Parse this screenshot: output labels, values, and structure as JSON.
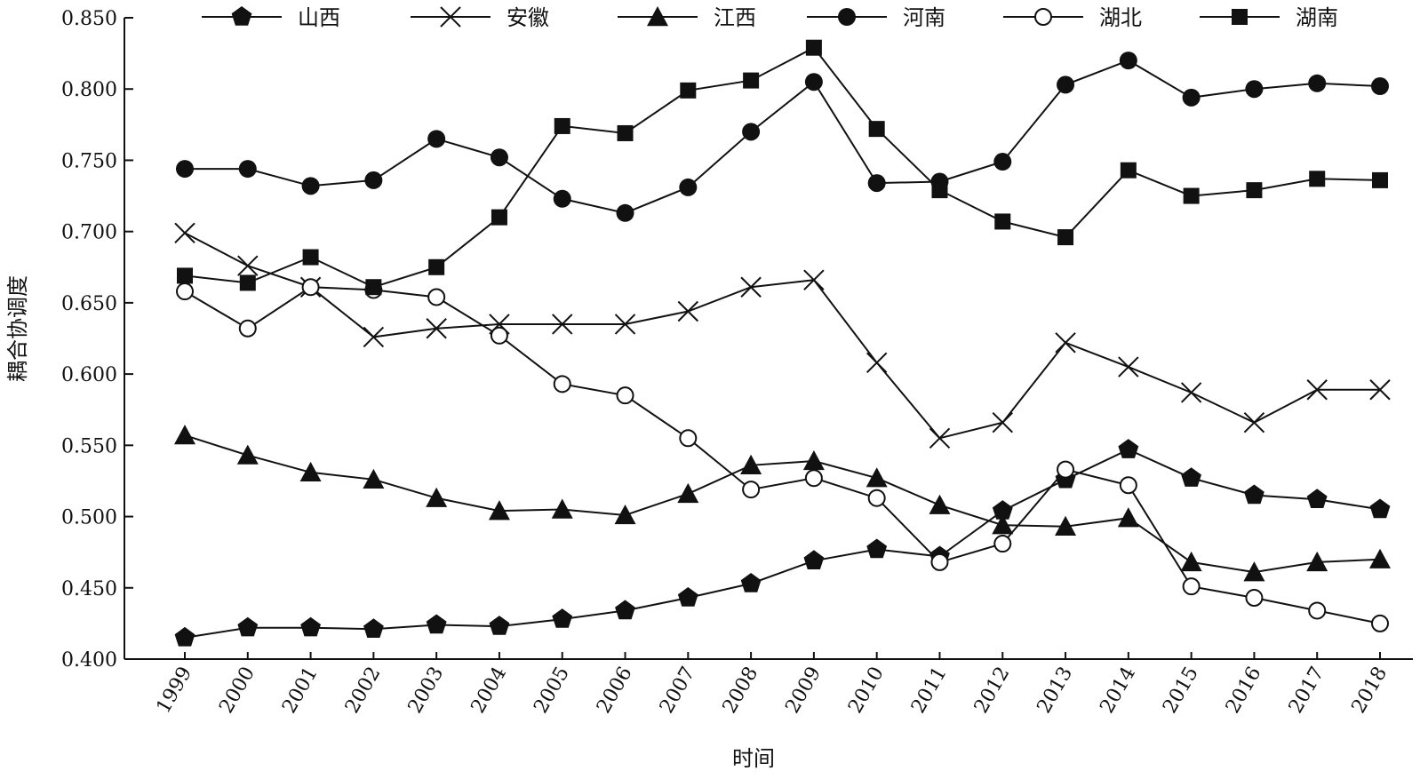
{
  "chart_data": {
    "type": "line",
    "title": "",
    "xlabel": "时间",
    "ylabel": "耦合协调度",
    "ylim": [
      0.4,
      0.85
    ],
    "yticks": [
      "0.400",
      "0.450",
      "0.500",
      "0.550",
      "0.600",
      "0.650",
      "0.700",
      "0.750",
      "0.800",
      "0.850"
    ],
    "categories": [
      "1999",
      "2000",
      "2001",
      "2002",
      "2003",
      "2004",
      "2005",
      "2006",
      "2007",
      "2008",
      "2009",
      "2010",
      "2011",
      "2012",
      "2013",
      "2014",
      "2015",
      "2016",
      "2017",
      "2018"
    ],
    "grid": false,
    "legend_position": "top",
    "series": [
      {
        "name": "山西",
        "marker": "pentagon-filled",
        "values": [
          0.415,
          0.422,
          0.422,
          0.421,
          0.424,
          0.423,
          0.428,
          0.434,
          0.443,
          0.453,
          0.469,
          0.477,
          0.472,
          0.504,
          0.526,
          0.547,
          0.527,
          0.515,
          0.512,
          0.505
        ]
      },
      {
        "name": "安徽",
        "marker": "x",
        "values": [
          0.699,
          0.676,
          0.661,
          0.626,
          0.632,
          0.635,
          0.635,
          0.635,
          0.644,
          0.661,
          0.666,
          0.608,
          0.555,
          0.566,
          0.622,
          0.605,
          0.587,
          0.566,
          0.589,
          0.589
        ]
      },
      {
        "name": "江西",
        "marker": "triangle-filled",
        "values": [
          0.557,
          0.543,
          0.531,
          0.526,
          0.513,
          0.504,
          0.505,
          0.501,
          0.516,
          0.536,
          0.539,
          0.527,
          0.508,
          0.494,
          0.493,
          0.499,
          0.468,
          0.461,
          0.468,
          0.47
        ]
      },
      {
        "name": "河南",
        "marker": "circle-filled",
        "values": [
          0.744,
          0.744,
          0.732,
          0.736,
          0.765,
          0.752,
          0.723,
          0.713,
          0.731,
          0.77,
          0.805,
          0.734,
          0.735,
          0.749,
          0.803,
          0.82,
          0.794,
          0.8,
          0.804,
          0.802
        ]
      },
      {
        "name": "湖北",
        "marker": "circle-open",
        "values": [
          0.658,
          0.632,
          0.661,
          0.659,
          0.654,
          0.627,
          0.593,
          0.585,
          0.555,
          0.519,
          0.527,
          0.513,
          0.468,
          0.481,
          0.533,
          0.522,
          0.451,
          0.443,
          0.434,
          0.425
        ]
      },
      {
        "name": "湖南",
        "marker": "square-filled",
        "values": [
          0.669,
          0.664,
          0.682,
          0.661,
          0.675,
          0.71,
          0.774,
          0.769,
          0.799,
          0.806,
          0.829,
          0.772,
          0.729,
          0.707,
          0.696,
          0.743,
          0.725,
          0.729,
          0.737,
          0.736
        ]
      }
    ]
  }
}
